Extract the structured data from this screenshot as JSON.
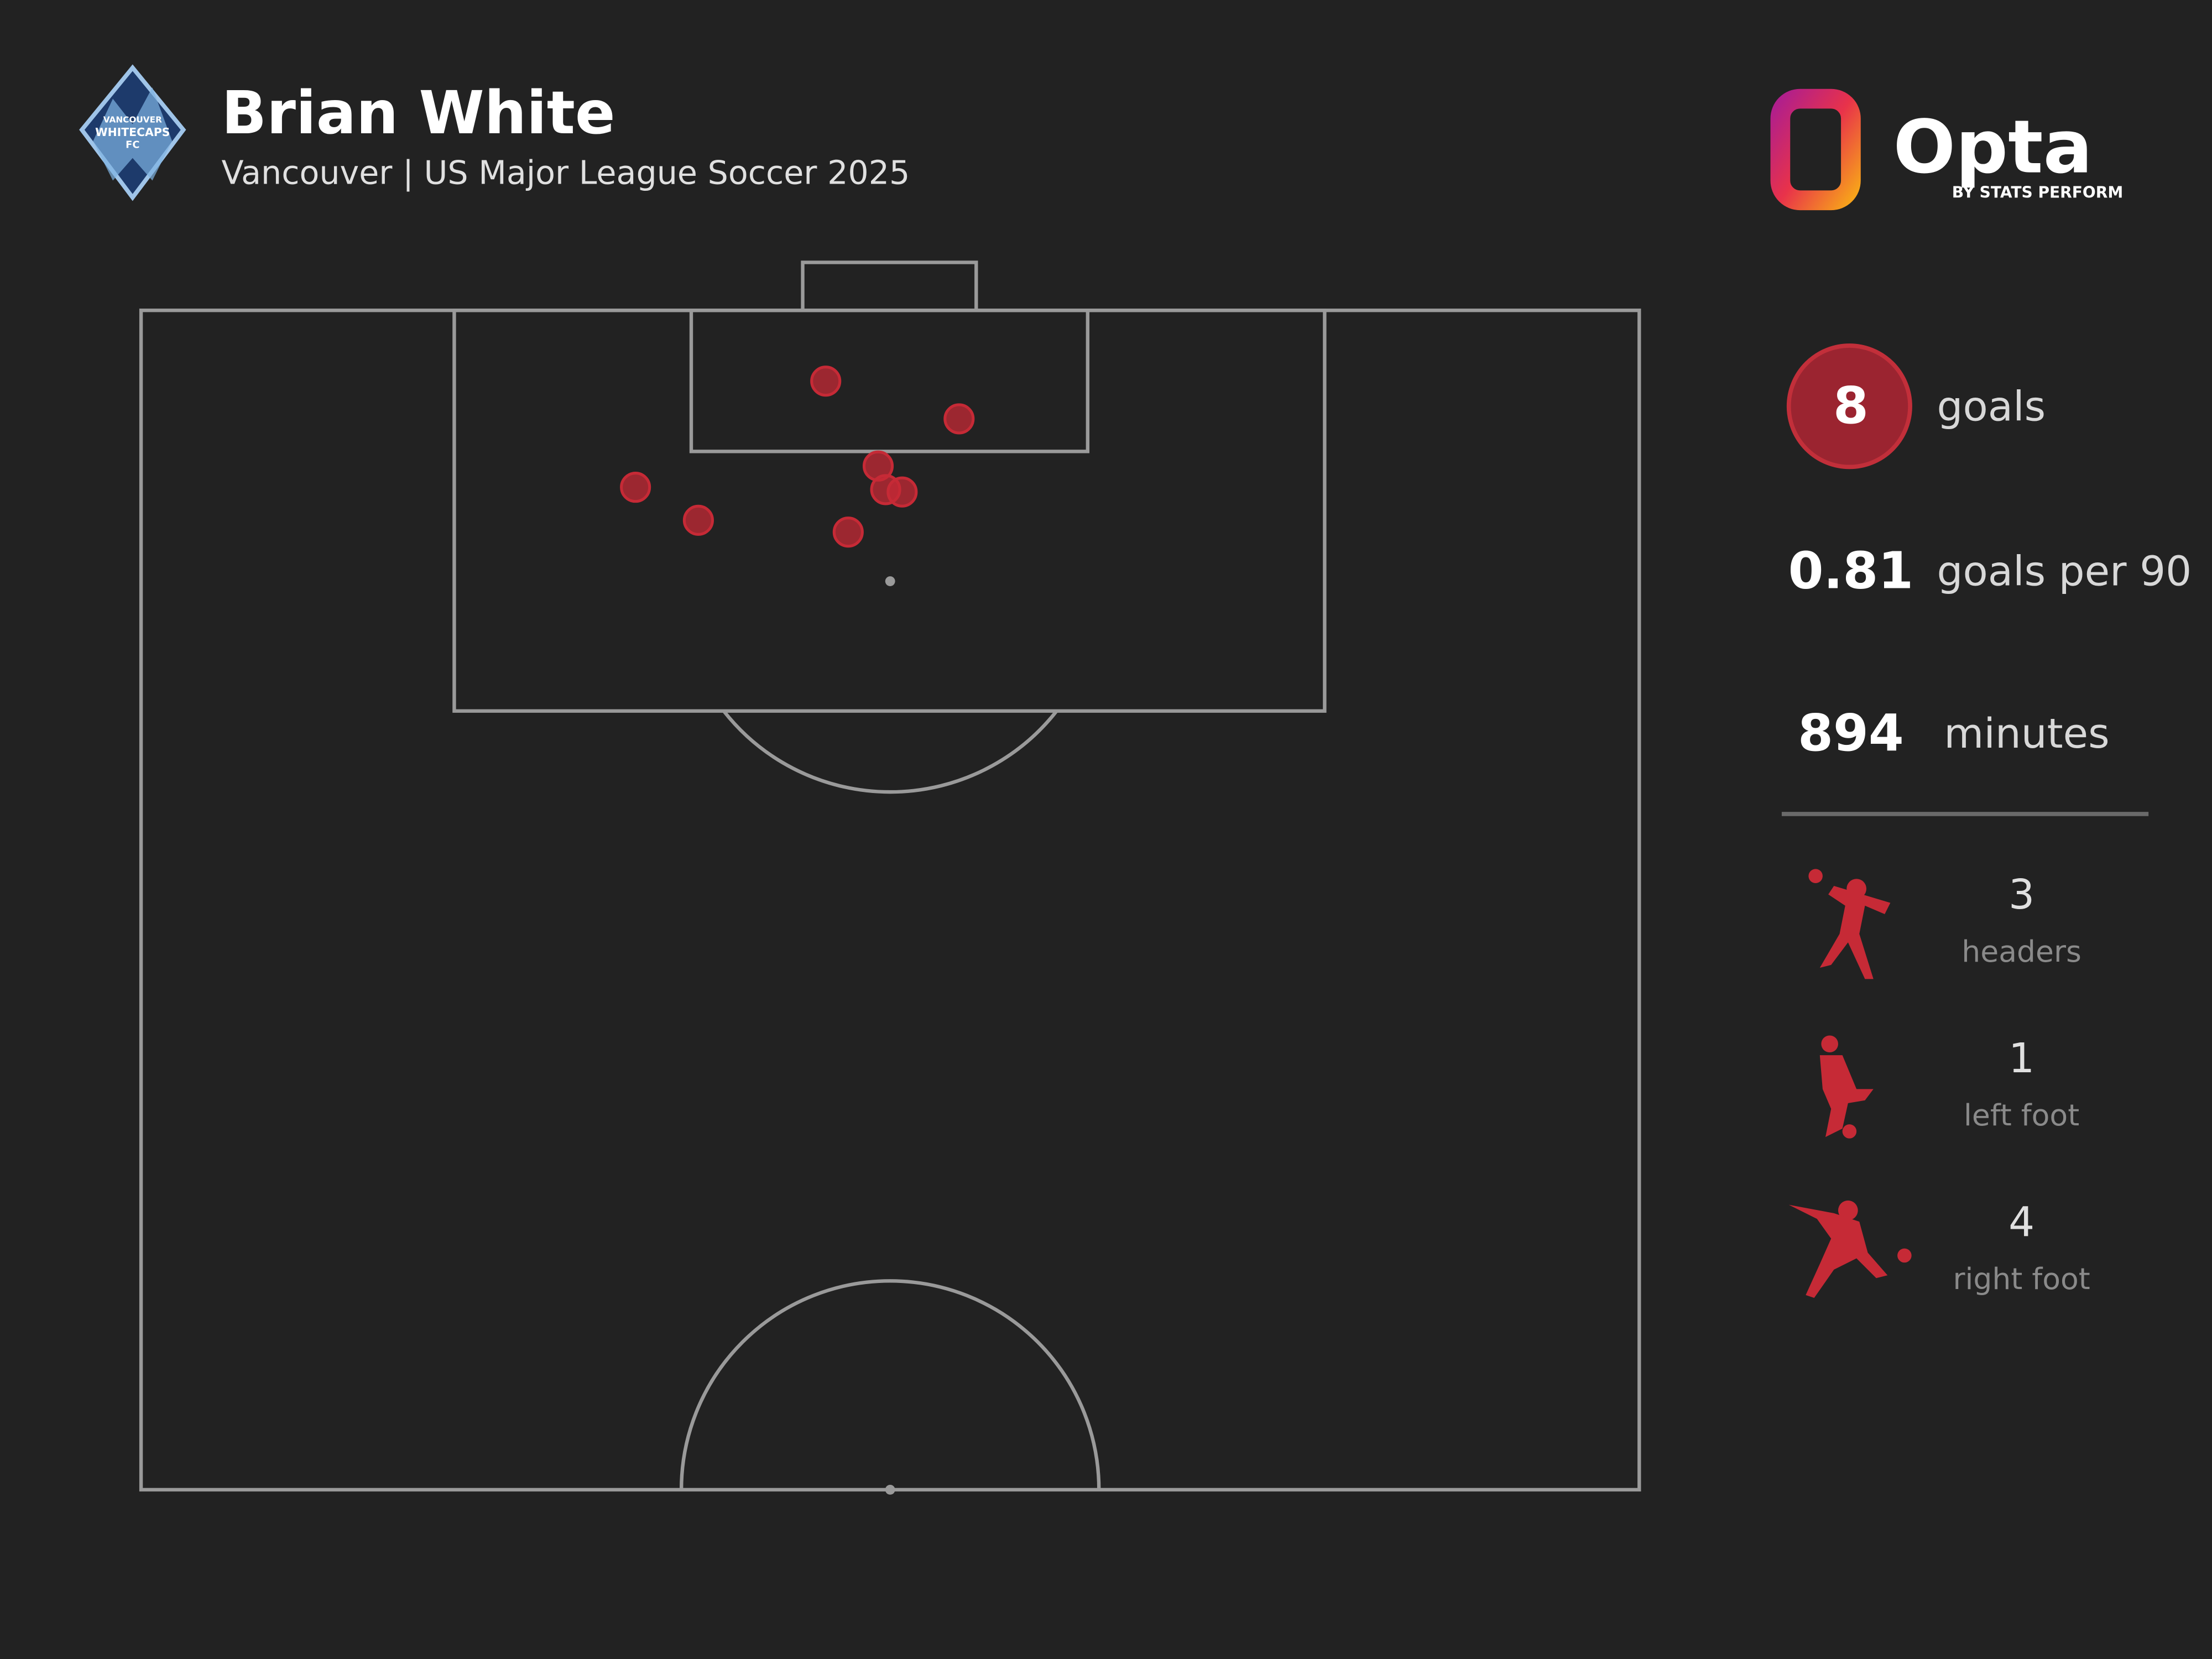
{
  "header": {
    "title": "Brian White",
    "subtitle": "Vancouver | US Major League Soccer 2025",
    "crest_lines": [
      "VANCOUVER",
      "WHITECAPS",
      "FC"
    ]
  },
  "brand": {
    "name": "Opta",
    "tagline": "BY STATS PERFORM"
  },
  "chart_data": {
    "type": "shotmap",
    "x": [
      45.7,
      54.6,
      33.0,
      37.2,
      49.2,
      49.7,
      50.8,
      47.2
    ],
    "values": [
      97.0,
      95.4,
      92.5,
      91.1,
      93.4,
      92.4,
      92.3,
      90.6
    ],
    "xlim": [
      0,
      100
    ],
    "ylim": [
      50,
      100
    ],
    "color": "#c62a36"
  },
  "stats": [
    {
      "value": 8,
      "label": "goals"
    },
    {
      "value": 0.81,
      "label": "goals per 90"
    },
    {
      "value": 894,
      "label": "minutes"
    }
  ],
  "breakdown": [
    {
      "value": 3,
      "label": "headers"
    },
    {
      "value": 1,
      "label": "left foot"
    },
    {
      "value": 4,
      "label": "right foot"
    }
  ]
}
